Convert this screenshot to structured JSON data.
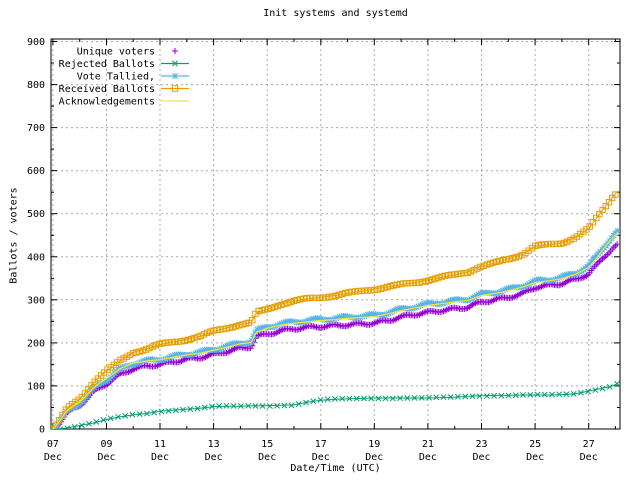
{
  "colors": {
    "background": "#ffffff",
    "border": "#000000",
    "grid": "#a8a8a8",
    "text": "#000000",
    "unique_voters": "#9400d3",
    "rejected_ballots": "#009e73",
    "vote_tallied": "#56b4e9",
    "received_ballots": "#e69f00",
    "acknowledgements": "#f0e442"
  },
  "chart_data": {
    "type": "line",
    "title": "Init systems and systemd",
    "xlabel": "Date/Time (UTC)",
    "ylabel": "Ballots / voters",
    "ylim": [
      0,
      900
    ],
    "grid": true,
    "legend_position": "top-left",
    "y_ticks": [
      0,
      100,
      200,
      300,
      400,
      500,
      600,
      700,
      800,
      900
    ],
    "y_minor_ticks": [
      50,
      150,
      250,
      350,
      450,
      550,
      650,
      750,
      850
    ],
    "x_tick_days": [
      7,
      9,
      11,
      13,
      15,
      17,
      19,
      21,
      23,
      25,
      27
    ],
    "x_tick_labels": [
      [
        "07",
        "Dec"
      ],
      [
        "09",
        "Dec"
      ],
      [
        "11",
        "Dec"
      ],
      [
        "13",
        "Dec"
      ],
      [
        "15",
        "Dec"
      ],
      [
        "17",
        "Dec"
      ],
      [
        "19",
        "Dec"
      ],
      [
        "21",
        "Dec"
      ],
      [
        "23",
        "Dec"
      ],
      [
        "25",
        "Dec"
      ],
      [
        "27",
        "Dec"
      ]
    ],
    "x_minor_tick_days": [
      8,
      10,
      12,
      14,
      16,
      18,
      20,
      22,
      24,
      26,
      28
    ],
    "xlim_days": [
      6.93,
      28.17
    ],
    "x_days_december_utc": [
      7.0,
      7.2,
      7.5,
      7.75,
      8.0,
      8.25,
      8.5,
      8.75,
      9.0,
      9.25,
      9.5,
      10.0,
      10.5,
      11.0,
      11.5,
      12.0,
      12.5,
      13.0,
      13.5,
      14.0,
      14.4,
      14.6,
      15.0,
      15.5,
      16.0,
      16.5,
      17.0,
      17.5,
      18.0,
      18.5,
      19.0,
      19.5,
      20.0,
      20.5,
      21.0,
      21.5,
      22.0,
      22.5,
      23.0,
      23.5,
      24.0,
      24.5,
      25.0,
      25.5,
      26.0,
      26.5,
      27.0,
      27.3,
      27.6,
      27.9,
      28.1
    ],
    "series": [
      {
        "name": "Unique voters",
        "color": "#9400d3",
        "marker": "plus",
        "style": "points",
        "values": [
          0,
          11,
          35,
          46,
          55,
          70,
          85,
          96,
          105,
          116,
          126,
          140,
          146,
          150,
          156,
          162,
          166,
          173,
          180,
          188,
          191,
          215,
          220,
          228,
          233,
          236,
          238,
          240,
          242,
          244,
          246,
          252,
          260,
          266,
          271,
          275,
          279,
          283,
          295,
          300,
          306,
          313,
          329,
          333,
          338,
          347,
          360,
          380,
          402,
          420,
          428
        ]
      },
      {
        "name": "Rejected Ballots",
        "color": "#009e73",
        "marker": "cross",
        "style": "linespoints",
        "values": [
          0,
          0,
          2,
          5,
          8,
          11,
          14,
          18,
          22,
          25,
          28,
          33,
          36,
          41,
          44,
          46,
          48,
          52,
          53,
          53,
          54,
          54,
          54,
          55,
          56,
          62,
          67,
          69,
          70,
          71,
          72,
          72,
          72,
          72,
          72,
          73,
          74,
          76,
          77,
          78,
          78,
          79,
          79,
          79,
          80,
          82,
          88,
          92,
          96,
          100,
          107
        ]
      },
      {
        "name": "Vote Tallied,",
        "color": "#56b4e9",
        "marker": "asterisk",
        "style": "linespoints",
        "values": [
          0,
          12,
          38,
          50,
          60,
          75,
          92,
          105,
          115,
          126,
          138,
          152,
          158,
          162,
          168,
          174,
          178,
          185,
          192,
          200,
          203,
          228,
          237,
          244,
          249,
          252,
          255,
          257,
          260,
          262,
          264,
          270,
          278,
          284,
          290,
          294,
          298,
          302,
          313,
          318,
          324,
          332,
          343,
          347,
          352,
          362,
          378,
          400,
          425,
          448,
          460
        ]
      },
      {
        "name": "Received Ballots",
        "color": "#e69f00",
        "marker": "square",
        "style": "linespoints",
        "values": [
          0,
          15,
          45,
          58,
          70,
          88,
          108,
          122,
          135,
          145,
          158,
          178,
          186,
          196,
          202,
          208,
          215,
          227,
          235,
          243,
          246,
          270,
          278,
          290,
          297,
          302,
          306,
          310,
          315,
          320,
          325,
          330,
          335,
          340,
          346,
          352,
          358,
          365,
          378,
          385,
          395,
          405,
          424,
          428,
          432,
          445,
          465,
          490,
          515,
          540,
          553
        ]
      },
      {
        "name": "Acknowledgements",
        "color": "#f0e442",
        "marker": "none",
        "style": "lines",
        "values": [
          0,
          14,
          41,
          53,
          63,
          78,
          95,
          107,
          117,
          128,
          140,
          153,
          158,
          161,
          167,
          172,
          176,
          183,
          190,
          198,
          201,
          225,
          234,
          241,
          246,
          249,
          252,
          254,
          257,
          259,
          261,
          267,
          275,
          281,
          287,
          291,
          295,
          299,
          310,
          315,
          321,
          329,
          340,
          344,
          349,
          359,
          375,
          397,
          422,
          445,
          457
        ]
      }
    ]
  }
}
